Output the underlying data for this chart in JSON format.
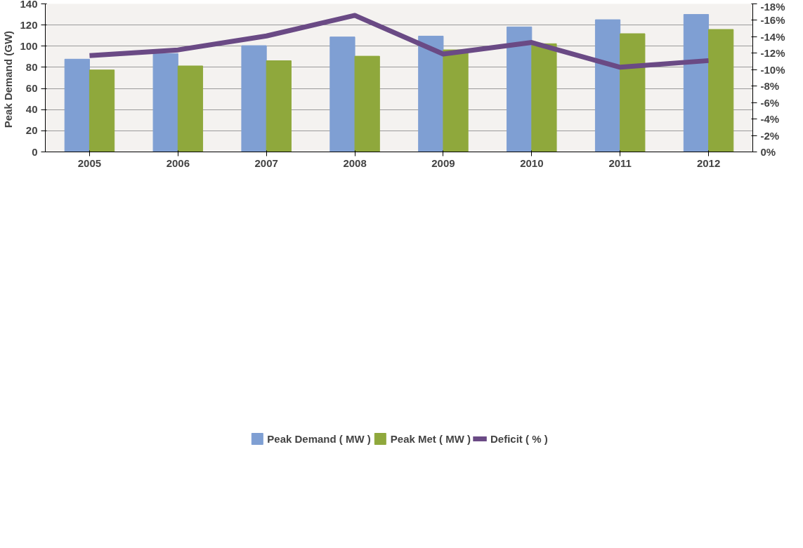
{
  "chart_data": {
    "type": "bar",
    "ylabel": "Peak Demand  (GW)",
    "categories": [
      "2005",
      "2006",
      "2007",
      "2008",
      "2009",
      "2010",
      "2011",
      "2012"
    ],
    "series": [
      {
        "name": "Peak Demand ( MW )",
        "color": "#7f9fd3",
        "values": [
          87.7,
          93,
          100.5,
          108.7,
          109.5,
          118.2,
          125,
          130
        ]
      },
      {
        "name": "Peak Met ( MW )",
        "color": "#8fa83c",
        "values": [
          77.5,
          81.3,
          86.2,
          90.5,
          96.5,
          102.3,
          111.8,
          115.8
        ]
      },
      {
        "name": "Deficit ( % )",
        "type": "line",
        "axis": "y2",
        "color": "#6a4a85",
        "values": [
          -11.7,
          -12.4,
          -14.1,
          -16.6,
          -11.9,
          -13.3,
          -10.3,
          -11.1
        ]
      }
    ],
    "ylim": [
      0,
      140
    ],
    "yticks": [
      0,
      20,
      40,
      60,
      80,
      100,
      120,
      140
    ],
    "y2lim": [
      0,
      -18
    ],
    "y2ticks": [
      {
        "value": 0,
        "label": "0%"
      },
      {
        "value": -2,
        "label": "-2%"
      },
      {
        "value": -4,
        "label": "-4%"
      },
      {
        "value": -6,
        "label": "-6%"
      },
      {
        "value": -8,
        "label": "-8%"
      },
      {
        "value": -10,
        "label": "-10%"
      },
      {
        "value": -12,
        "label": "-12%"
      },
      {
        "value": -14,
        "label": "-14%"
      },
      {
        "value": -16,
        "label": "-16%"
      },
      {
        "value": -18,
        "label": "-18%"
      }
    ],
    "grid": "y",
    "legend": "bottom"
  }
}
